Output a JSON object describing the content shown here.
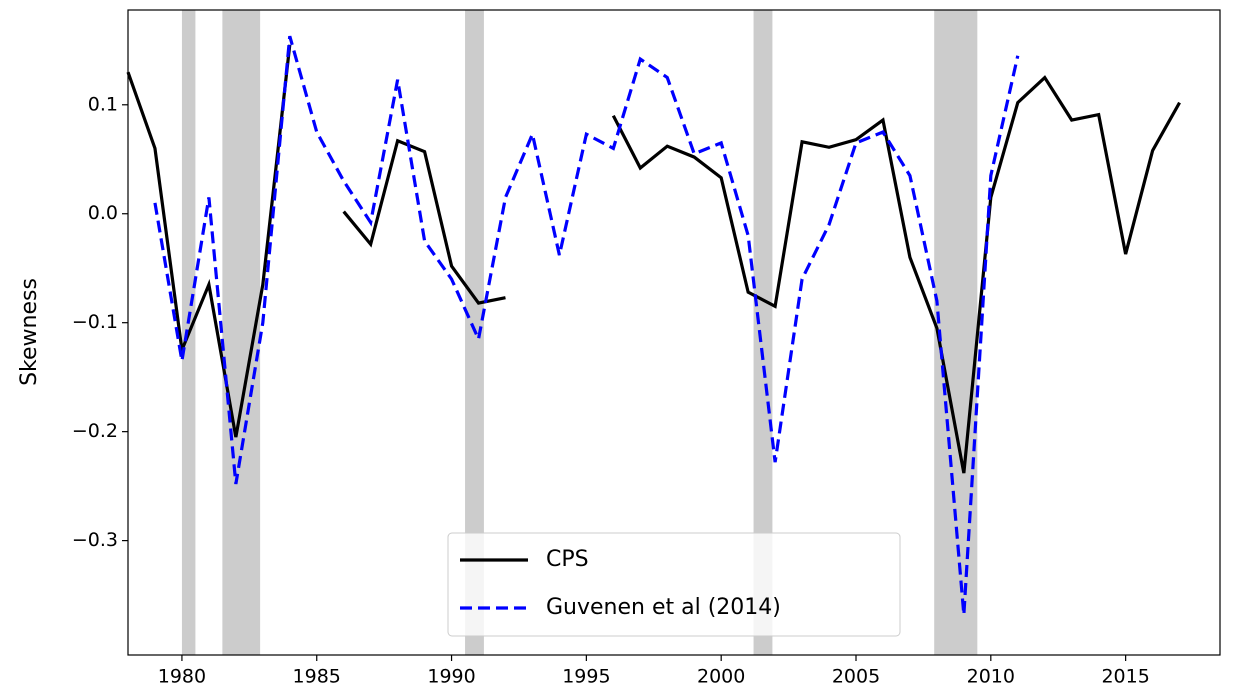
{
  "chart_data": {
    "type": "line",
    "ylabel": "Skewness",
    "x": [
      1978,
      1979,
      1980,
      1981,
      1982,
      1983,
      1984,
      1985,
      1986,
      1987,
      1988,
      1989,
      1990,
      1991,
      1992,
      1993,
      1994,
      1995,
      1996,
      1997,
      1998,
      1999,
      2000,
      2001,
      2002,
      2003,
      2004,
      2005,
      2006,
      2007,
      2008,
      2009,
      2010,
      2011,
      2012,
      2013,
      2014,
      2015,
      2016,
      2017
    ],
    "series": [
      {
        "name": "CPS",
        "color": "#000000",
        "dash": false,
        "values": [
          0.13,
          0.06,
          -0.125,
          -0.065,
          -0.205,
          -0.065,
          0.155,
          null,
          0.002,
          -0.028,
          0.067,
          0.057,
          -0.048,
          -0.082,
          -0.077,
          null,
          null,
          null,
          0.09,
          0.042,
          0.062,
          0.052,
          0.033,
          -0.072,
          -0.085,
          0.066,
          0.061,
          0.068,
          0.086,
          -0.04,
          -0.105,
          -0.238,
          0.015,
          0.102,
          0.125,
          0.086,
          0.091,
          -0.037,
          0.058,
          0.102
        ]
      },
      {
        "name": "Guvenen et al (2014)",
        "color": "#0000ff",
        "dash": true,
        "values": [
          null,
          0.01,
          -0.135,
          0.015,
          -0.248,
          -0.1,
          0.163,
          0.075,
          0.03,
          -0.008,
          0.123,
          -0.025,
          -0.06,
          -0.115,
          0.015,
          0.073,
          -0.038,
          0.073,
          0.06,
          0.142,
          0.125,
          0.055,
          0.065,
          -0.02,
          -0.228,
          -0.06,
          -0.01,
          0.065,
          0.075,
          0.035,
          -0.08,
          -0.368,
          0.035,
          0.145,
          null,
          null,
          null,
          null,
          null,
          null
        ]
      }
    ],
    "recessions": [
      [
        1980.0,
        1980.5
      ],
      [
        1981.5,
        1982.9
      ],
      [
        1990.5,
        1991.2
      ],
      [
        2001.2,
        2001.9
      ],
      [
        2007.9,
        2009.5
      ]
    ],
    "recession_color": "#cccccc",
    "xlim": [
      1978,
      2018.5
    ],
    "ylim": [
      -0.405,
      0.187
    ],
    "xticks": [
      1980,
      1985,
      1990,
      1995,
      2000,
      2005,
      2010,
      2015
    ],
    "yticks": [
      {
        "value": -0.3,
        "label": "−0.3"
      },
      {
        "value": -0.2,
        "label": "−0.2"
      },
      {
        "value": -0.1,
        "label": "−0.1"
      },
      {
        "value": 0,
        "label": "0.0"
      },
      0.1
    ],
    "legend": "lower center"
  }
}
